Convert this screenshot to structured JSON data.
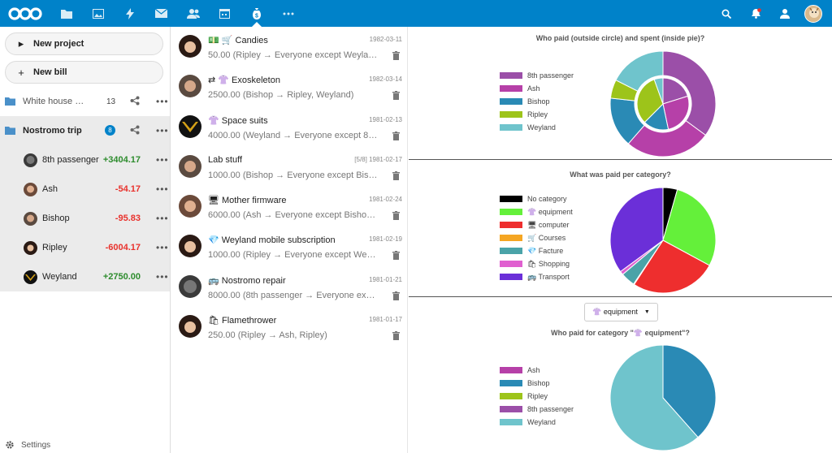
{
  "header": {
    "apps": [
      "files-icon",
      "photos-icon",
      "activity-icon",
      "mail-icon",
      "contacts-icon",
      "calendar-icon",
      "cospend-icon",
      "more-apps-icon"
    ],
    "active_app": "cospend-icon",
    "right_icons": [
      "search-icon",
      "notifications-icon",
      "contacts-menu-icon"
    ]
  },
  "sidebar": {
    "new_project_label": "New project",
    "new_bill_label": "New bill",
    "projects": [
      {
        "name": "White house m...",
        "count": "13"
      },
      {
        "name": "Nostromo trip",
        "count": "8"
      }
    ],
    "members": [
      {
        "name": "8th passenger",
        "balance": "+3404.17",
        "sign": "pos"
      },
      {
        "name": "Ash",
        "balance": "-54.17",
        "sign": "neg"
      },
      {
        "name": "Bishop",
        "balance": "-95.83",
        "sign": "neg"
      },
      {
        "name": "Ripley",
        "balance": "-6004.17",
        "sign": "neg"
      },
      {
        "name": "Weyland",
        "balance": "+2750.00",
        "sign": "pos"
      }
    ],
    "settings_label": "Settings"
  },
  "bills": [
    {
      "title": "💵 🛒 Candies",
      "date": "1982-03-11",
      "sub": "50.00 (Ripley → Everyone except Weyland)"
    },
    {
      "title": "⇄ 👚 Exoskeleton",
      "date": "1982-03-14",
      "sub": "2500.00 (Bishop → Ripley, Weyland)"
    },
    {
      "title": "👚 Space suits",
      "date": "1981-02-13",
      "sub": "4000.00 (Weyland → Everyone except 8th p..."
    },
    {
      "title": "Lab stuff",
      "date": "[5/8] 1981-02-17",
      "sub": "1000.00 (Bishop → Everyone except Bishop ..."
    },
    {
      "title": "🖥 Mother firmware",
      "date": "1981-02-24",
      "sub": "6000.00 (Ash → Everyone except Bishop an..."
    },
    {
      "title": "💎 Weyland mobile subscription",
      "date": "1981-02-19",
      "sub": "1000.00 (Ripley → Everyone except Weyland)"
    },
    {
      "title": "🚌 Nostromo repair",
      "date": "1981-01-21",
      "sub": "8000.00 (8th passenger → Everyone except ..."
    },
    {
      "title": "🛍 Flamethrower",
      "date": "1981-01-17",
      "sub": "250.00 (Ripley → Ash, Ripley)"
    }
  ],
  "stats": {
    "chart1_title": "Who paid (outside circle) and spent (inside pie)?",
    "chart1_legend": [
      {
        "label": "8th passenger",
        "color": "#9b4fa8"
      },
      {
        "label": "Ash",
        "color": "#b640a8"
      },
      {
        "label": "Bishop",
        "color": "#2a8ab5"
      },
      {
        "label": "Ripley",
        "color": "#9dc41a"
      },
      {
        "label": "Weyland",
        "color": "#6fc4cc"
      }
    ],
    "chart2_title": "What was paid per category?",
    "chart2_legend": [
      {
        "label": "No category",
        "color": "#000000"
      },
      {
        "label": "👚 equipment",
        "color": "#64f03a"
      },
      {
        "label": "🖥 computer",
        "color": "#ee2e2e"
      },
      {
        "label": "🛒 Courses",
        "color": "#f5a623"
      },
      {
        "label": "💎 Facture",
        "color": "#4aa3a8"
      },
      {
        "label": "🛍 Shopping",
        "color": "#e060d0"
      },
      {
        "label": "🚌 Transport",
        "color": "#6b2fd8"
      }
    ],
    "category_select": "👚 equipment",
    "chart3_title": "Who paid for category \"👚 equipment\"?",
    "chart3_legend": [
      {
        "label": "Ash",
        "color": "#b640a8"
      },
      {
        "label": "Bishop",
        "color": "#2a8ab5"
      },
      {
        "label": "Ripley",
        "color": "#9dc41a"
      },
      {
        "label": "8th passenger",
        "color": "#9b4fa8"
      },
      {
        "label": "Weyland",
        "color": "#6fc4cc"
      }
    ]
  },
  "chart_data": [
    {
      "type": "pie",
      "title": "Who paid (outside circle) and spent (inside pie)?",
      "series": [
        {
          "name": "paid",
          "categories": [
            "8th passenger",
            "Ash",
            "Bishop",
            "Ripley",
            "Weyland"
          ],
          "values": [
            8000,
            6000,
            3500,
            1300,
            4000
          ]
        },
        {
          "name": "spent",
          "categories": [
            "8th passenger",
            "Ash",
            "Bishop",
            "Ripley",
            "Weyland"
          ],
          "values": [
            4596,
            6054,
            3596,
            7304,
            1250
          ]
        }
      ]
    },
    {
      "type": "pie",
      "title": "What was paid per category?",
      "categories": [
        "No category",
        "👚 equipment",
        "🖥 computer",
        "🛒 Courses",
        "💎 Facture",
        "🛍 Shopping",
        "🚌 Transport"
      ],
      "values": [
        1000,
        6500,
        6000,
        50,
        1000,
        250,
        8000
      ]
    },
    {
      "type": "pie",
      "title": "Who paid for category \"👚 equipment\"?",
      "categories": [
        "Ash",
        "Bishop",
        "Ripley",
        "8th passenger",
        "Weyland"
      ],
      "values": [
        0,
        2500,
        0,
        0,
        4000
      ]
    }
  ]
}
